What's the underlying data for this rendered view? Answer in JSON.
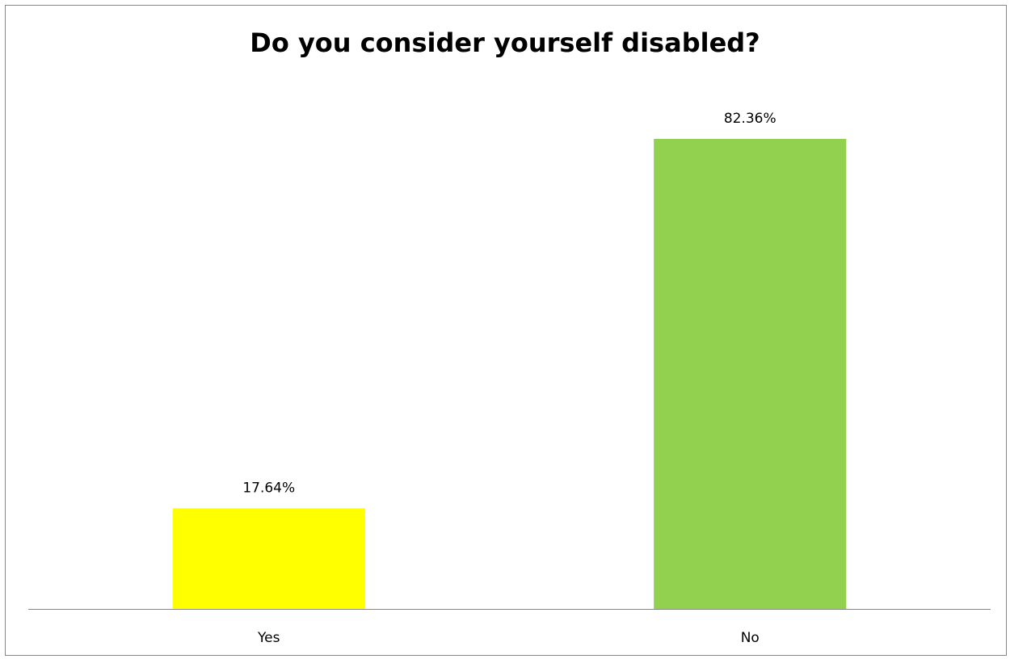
{
  "chart_data": {
    "type": "bar",
    "title": "Do you consider yourself disabled?",
    "xlabel": "",
    "ylabel": "",
    "categories": [
      "Yes",
      "No"
    ],
    "values": [
      17.64,
      82.36
    ],
    "value_labels": [
      "17.64%",
      "82.36%"
    ],
    "colors": [
      "#FFFF00",
      "#92D050"
    ],
    "unit": "%",
    "ylim": [
      0,
      82.36
    ],
    "grid": false,
    "legend": "none"
  }
}
